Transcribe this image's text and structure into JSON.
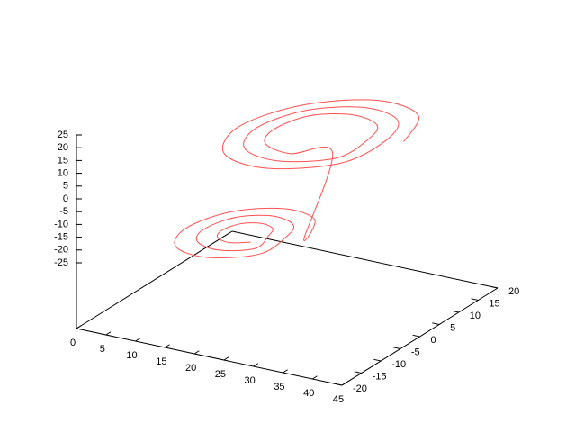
{
  "chart_data": {
    "type": "line3d",
    "color": "#ff5050",
    "x": [
      37,
      32.9,
      23,
      13.1,
      9,
      13.1,
      23,
      32.9,
      34,
      30.8,
      23,
      15.2,
      12,
      15.2,
      23,
      30.8,
      31,
      28.7,
      23,
      17.3,
      15,
      17.3,
      23,
      28.7,
      32,
      29.1,
      22,
      14.9,
      12,
      14.9,
      22,
      29.1,
      29,
      26.9,
      22,
      17.1,
      15,
      17.1,
      22,
      26.9,
      26,
      24.8,
      22,
      19.2,
      18,
      19.2,
      22,
      24.8
    ],
    "y": [
      8,
      17.9,
      22,
      17.9,
      8,
      -1.9,
      -6,
      -1.9,
      8,
      15.8,
      19,
      15.8,
      8,
      0.2,
      -3,
      0.2,
      8,
      13.7,
      16,
      13.7,
      8,
      2.3,
      0,
      2.3,
      -10,
      -2.9,
      0,
      -2.9,
      -10,
      -17.1,
      -20,
      -17.1,
      -10,
      -5.1,
      -3,
      -5.1,
      -10,
      -14.9,
      -17,
      -14.9,
      -10,
      -7.2,
      -6,
      -7.2,
      -10,
      -12.8,
      -14,
      -12.8
    ],
    "z": [
      14,
      13,
      10,
      7,
      6,
      7,
      10,
      13,
      13,
      12,
      10,
      8,
      7,
      8,
      10,
      12,
      12,
      11,
      10,
      9,
      8,
      9,
      10,
      11,
      -9,
      -10,
      -12,
      -14,
      -15,
      -14,
      -12,
      -10,
      -10,
      -11,
      -12,
      -13,
      -14,
      -13,
      -12,
      -11,
      -11,
      -11.5,
      -12,
      -12.5,
      -13,
      -12.5,
      -12,
      -11.5
    ],
    "xlim": [
      0,
      45
    ],
    "xticks": [
      0,
      5,
      10,
      15,
      20,
      25,
      30,
      35,
      40,
      45
    ],
    "ylim": [
      -20,
      20
    ],
    "yticks": [
      -20,
      -15,
      -10,
      -5,
      0,
      5,
      10,
      15,
      20
    ],
    "zlim": [
      -25,
      25
    ],
    "zticks": [
      -25,
      -20,
      -15,
      -10,
      -5,
      0,
      5,
      10,
      15,
      20,
      25
    ]
  }
}
